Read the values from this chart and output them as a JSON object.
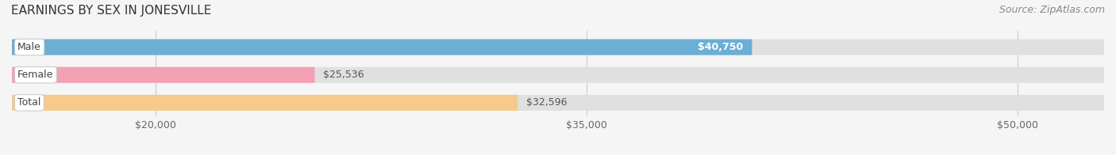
{
  "title": "EARNINGS BY SEX IN JONESVILLE",
  "source": "Source: ZipAtlas.com",
  "categories": [
    "Male",
    "Female",
    "Total"
  ],
  "values": [
    40750,
    25536,
    32596
  ],
  "bar_colors": [
    "#6baed6",
    "#f4a0b5",
    "#f7c98b"
  ],
  "label_colors": [
    "white",
    "#555555",
    "#555555"
  ],
  "value_labels": [
    "$40,750",
    "$25,536",
    "$32,596"
  ],
  "bar_bg_color": "#e8e8e8",
  "category_label_bg": "white",
  "xlim": [
    15000,
    53000
  ],
  "xticks": [
    20000,
    35000,
    50000
  ],
  "xtick_labels": [
    "$20,000",
    "$35,000",
    "$50,000"
  ],
  "title_fontsize": 11,
  "source_fontsize": 9,
  "bar_label_fontsize": 9,
  "value_label_fontsize": 9,
  "tick_fontsize": 9,
  "background_color": "#f5f5f5",
  "bar_bg_full_color": "#e0e0e0"
}
